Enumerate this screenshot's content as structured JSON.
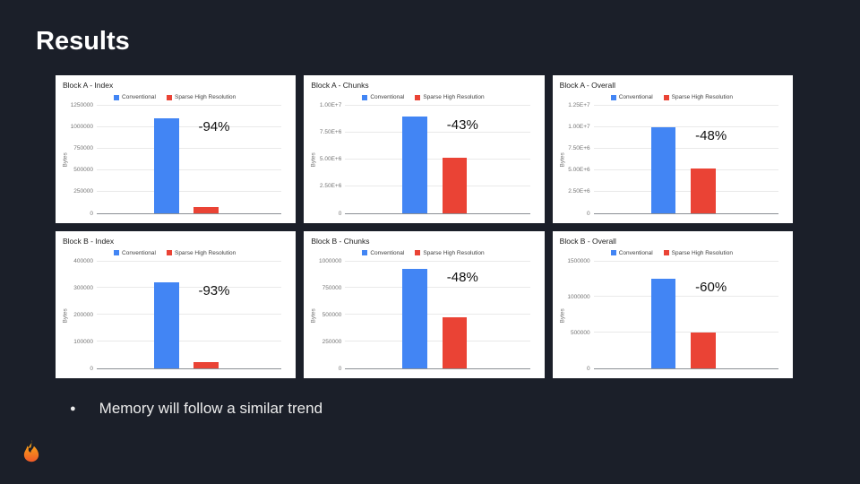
{
  "slide": {
    "title": "Results",
    "bullet_glyph": "●",
    "bullet_text": "Memory will follow a similar trend"
  },
  "colors": {
    "background": "#1b1f29",
    "panel": "#ffffff",
    "conventional_blue": "#4285F4",
    "sparse_red": "#EA4335",
    "logo_orange_top": "#FCB813",
    "logo_orange_bottom": "#F05A28"
  },
  "logo": {
    "icon": "grafana-flame-icon"
  },
  "chart_data": [
    {
      "type": "bar",
      "title": "Block A - Index",
      "ylabel": "Bytes",
      "ylim": [
        0,
        1250000
      ],
      "grid": true,
      "legend_position": "top",
      "yticks": [
        {
          "value": 0,
          "label": "0"
        },
        {
          "value": 250000,
          "label": "250000"
        },
        {
          "value": 500000,
          "label": "500000"
        },
        {
          "value": 750000,
          "label": "750000"
        },
        {
          "value": 1000000,
          "label": "1000000"
        },
        {
          "value": 1250000,
          "label": "1250000"
        }
      ],
      "series": [
        {
          "name": "Conventional",
          "color": "#4285F4",
          "value": 1100000
        },
        {
          "name": "Sparse High Resolution",
          "color": "#EA4335",
          "value": 66000
        }
      ],
      "annotation": "-94%"
    },
    {
      "type": "bar",
      "title": "Block A - Chunks",
      "ylabel": "Bytes",
      "ylim": [
        0,
        10000000
      ],
      "grid": true,
      "legend_position": "top",
      "yticks": [
        {
          "value": 0,
          "label": "0"
        },
        {
          "value": 2500000,
          "label": "2.50E+6"
        },
        {
          "value": 5000000,
          "label": "5.00E+6"
        },
        {
          "value": 7500000,
          "label": "7.50E+6"
        },
        {
          "value": 10000000,
          "label": "1.00E+7"
        }
      ],
      "series": [
        {
          "name": "Conventional",
          "color": "#4285F4",
          "value": 9000000
        },
        {
          "name": "Sparse High Resolution",
          "color": "#EA4335",
          "value": 5150000
        }
      ],
      "annotation": "-43%"
    },
    {
      "type": "bar",
      "title": "Block A - Overall",
      "ylabel": "Bytes",
      "ylim": [
        0,
        12500000
      ],
      "grid": true,
      "legend_position": "top",
      "yticks": [
        {
          "value": 0,
          "label": "0"
        },
        {
          "value": 2500000,
          "label": "2.50E+6"
        },
        {
          "value": 5000000,
          "label": "5.00E+6"
        },
        {
          "value": 7500000,
          "label": "7.50E+6"
        },
        {
          "value": 10000000,
          "label": "1.00E+7"
        },
        {
          "value": 12500000,
          "label": "1.25E+7"
        }
      ],
      "series": [
        {
          "name": "Conventional",
          "color": "#4285F4",
          "value": 10000000
        },
        {
          "name": "Sparse High Resolution",
          "color": "#EA4335",
          "value": 5200000
        }
      ],
      "annotation": "-48%"
    },
    {
      "type": "bar",
      "title": "Block B - Index",
      "ylabel": "Bytes",
      "ylim": [
        0,
        400000
      ],
      "grid": true,
      "legend_position": "top",
      "yticks": [
        {
          "value": 0,
          "label": "0"
        },
        {
          "value": 100000,
          "label": "100000"
        },
        {
          "value": 200000,
          "label": "200000"
        },
        {
          "value": 300000,
          "label": "300000"
        },
        {
          "value": 400000,
          "label": "400000"
        }
      ],
      "series": [
        {
          "name": "Conventional",
          "color": "#4285F4",
          "value": 320000
        },
        {
          "name": "Sparse High Resolution",
          "color": "#EA4335",
          "value": 22000
        }
      ],
      "annotation": "-93%"
    },
    {
      "type": "bar",
      "title": "Block B - Chunks",
      "ylabel": "Bytes",
      "ylim": [
        0,
        1000000
      ],
      "grid": true,
      "legend_position": "top",
      "yticks": [
        {
          "value": 0,
          "label": "0"
        },
        {
          "value": 250000,
          "label": "250000"
        },
        {
          "value": 500000,
          "label": "500000"
        },
        {
          "value": 750000,
          "label": "750000"
        },
        {
          "value": 1000000,
          "label": "1000000"
        }
      ],
      "series": [
        {
          "name": "Conventional",
          "color": "#4285F4",
          "value": 930000
        },
        {
          "name": "Sparse High Resolution",
          "color": "#EA4335",
          "value": 480000
        }
      ],
      "annotation": "-48%"
    },
    {
      "type": "bar",
      "title": "Block B - Overall",
      "ylabel": "Bytes",
      "ylim": [
        0,
        1500000
      ],
      "grid": true,
      "legend_position": "top",
      "yticks": [
        {
          "value": 0,
          "label": "0"
        },
        {
          "value": 500000,
          "label": "500000"
        },
        {
          "value": 1000000,
          "label": "1000000"
        },
        {
          "value": 1500000,
          "label": "1500000"
        }
      ],
      "series": [
        {
          "name": "Conventional",
          "color": "#4285F4",
          "value": 1250000
        },
        {
          "name": "Sparse High Resolution",
          "color": "#EA4335",
          "value": 500000
        }
      ],
      "annotation": "-60%"
    }
  ]
}
